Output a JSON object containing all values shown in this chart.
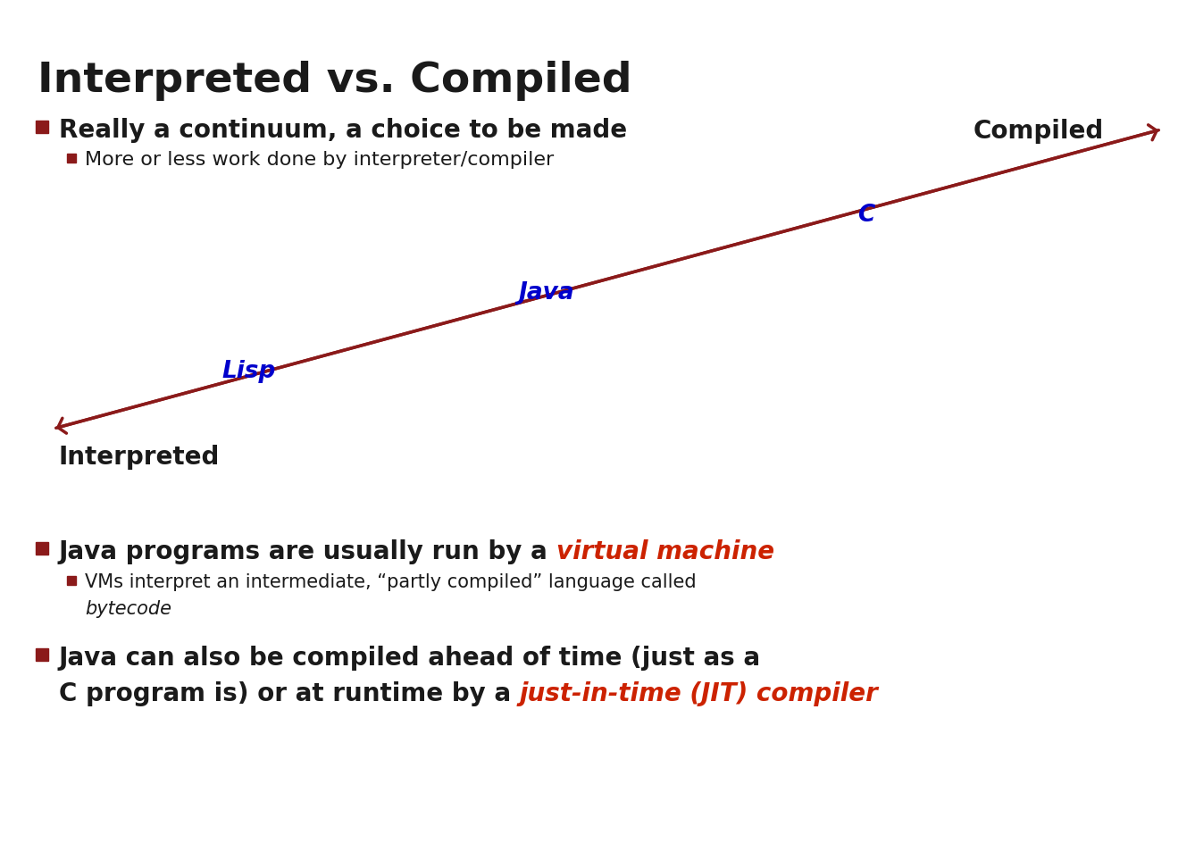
{
  "title": "Interpreted vs. Compiled",
  "title_fontsize": 34,
  "background_color": "#ffffff",
  "bullet_color": "#8b1a1a",
  "text_dark": "#1a1a1a",
  "text_red": "#cc2200",
  "text_blue": "#0000cc",
  "arrow_color": "#8b1a1a",
  "bullet1_text": "Really a continuum, a choice to be made",
  "bullet1_sub": "More or less work done by interpreter/compiler",
  "arrow_label_left": "Interpreted",
  "arrow_label_right": "Compiled",
  "lang_lisp": "Lisp",
  "lang_java": "Java",
  "lang_c": "C",
  "bullet2_black": "Java programs are usually run by a ",
  "bullet2_red": "virtual machine",
  "bullet2_sub1": "VMs interpret an intermediate, “partly compiled” language called",
  "bullet2_sub2": "bytecode",
  "bullet3_black": "Java can also be compiled ahead of time (just as a\nC program is) or at runtime by a ",
  "bullet3_red": "just-in-time (JIT) compiler"
}
